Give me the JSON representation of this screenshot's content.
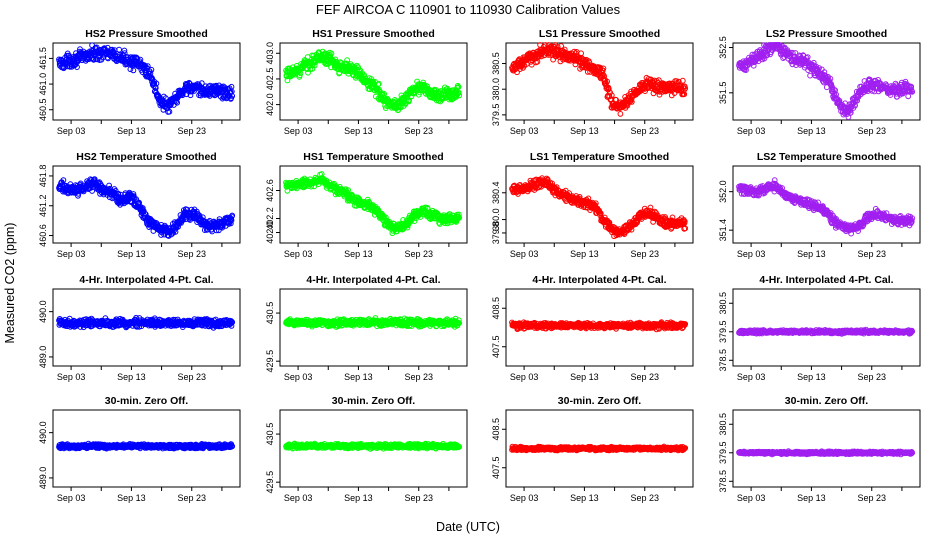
{
  "figure": {
    "title": "FEF   AIRCOA C   110901 to 110930   Calibration Values",
    "xlabel": "Date (UTC)",
    "ylabel": "Measured CO2 (ppm)"
  },
  "colors": {
    "blue": "#0000ff",
    "green": "#00ff00",
    "red": "#ff0000",
    "purple": "#a020f0"
  },
  "chart_data": [
    {
      "type": "scatter",
      "title": "HS2 Pressure Smoothed",
      "color": "blue",
      "ylim": [
        460.3,
        461.8
      ],
      "yticks": [
        {
          "v": 460.5,
          "label": "460.5"
        },
        {
          "v": 461.0,
          "label": "461.0"
        },
        {
          "v": 461.5,
          "label": "461.5"
        }
      ],
      "profile": [
        461.4,
        461.45,
        461.5,
        461.55,
        461.6,
        461.62,
        461.55,
        461.5,
        461.45,
        461.35,
        461.2,
        460.7,
        460.55,
        460.75,
        460.95,
        460.9,
        460.85,
        460.9,
        460.85,
        460.8
      ],
      "noise": 0.09
    },
    {
      "type": "scatter",
      "title": "HS1 Pressure Smoothed",
      "color": "green",
      "ylim": [
        401.7,
        403.2
      ],
      "yticks": [
        {
          "v": 402.0,
          "label": "402.0"
        },
        {
          "v": 402.5,
          "label": "402.5"
        },
        {
          "v": 403.0,
          "label": "403.0"
        }
      ],
      "profile": [
        402.55,
        402.65,
        402.75,
        402.85,
        402.95,
        402.85,
        402.75,
        402.7,
        402.6,
        402.45,
        402.3,
        402.05,
        401.95,
        402.1,
        402.3,
        402.35,
        402.2,
        402.15,
        402.2,
        402.25
      ],
      "noise": 0.09
    },
    {
      "type": "scatter",
      "title": "LS1 Pressure Smoothed",
      "color": "red",
      "ylim": [
        379.4,
        380.9
      ],
      "yticks": [
        {
          "v": 379.5,
          "label": "379.5"
        },
        {
          "v": 380.0,
          "label": "380.0"
        },
        {
          "v": 380.5,
          "label": "380.5"
        }
      ],
      "profile": [
        380.4,
        380.5,
        380.6,
        380.7,
        380.8,
        380.7,
        380.65,
        380.6,
        380.5,
        380.4,
        380.3,
        379.7,
        379.65,
        379.85,
        380.0,
        380.1,
        380.05,
        380.0,
        380.05,
        380.0
      ],
      "noise": 0.09
    },
    {
      "type": "scatter",
      "title": "LS2 Pressure Smoothed",
      "color": "purple",
      "ylim": [
        350.9,
        352.6
      ],
      "yticks": [
        {
          "v": 351.5,
          "label": "351.5"
        },
        {
          "v": 352.5,
          "label": "352.5"
        }
      ],
      "profile": [
        352.05,
        352.15,
        352.3,
        352.45,
        352.55,
        352.4,
        352.25,
        352.2,
        352.05,
        351.9,
        351.7,
        351.2,
        351.1,
        351.4,
        351.65,
        351.7,
        351.6,
        351.55,
        351.6,
        351.55
      ],
      "noise": 0.1
    },
    {
      "type": "scatter",
      "title": "HS2 Temperature Smoothed",
      "color": "blue",
      "ylim": [
        460.45,
        462.0
      ],
      "yticks": [
        {
          "v": 460.6,
          "label": "460.6"
        },
        {
          "v": 461.2,
          "label": "461.2"
        },
        {
          "v": 461.8,
          "label": "461.8"
        }
      ],
      "profile": [
        461.6,
        461.55,
        461.5,
        461.6,
        461.65,
        461.5,
        461.45,
        461.3,
        461.4,
        461.1,
        460.85,
        460.75,
        460.7,
        460.8,
        461.05,
        461.0,
        460.85,
        460.8,
        460.85,
        460.95
      ],
      "noise": 0.08
    },
    {
      "type": "scatter",
      "title": "HS1 Temperature Smoothed",
      "color": "green",
      "ylim": [
        401.85,
        402.95
      ],
      "yticks": [
        {
          "v": 402.0,
          "label": "402.0"
        },
        {
          "v": 402.2,
          "label": "402.2"
        },
        {
          "v": 402.6,
          "label": "402.6"
        }
      ],
      "profile": [
        402.65,
        402.68,
        402.7,
        402.72,
        402.75,
        402.65,
        402.6,
        402.5,
        402.45,
        402.4,
        402.3,
        402.15,
        402.05,
        402.1,
        402.25,
        402.3,
        402.25,
        402.2,
        402.2,
        402.2
      ],
      "noise": 0.05
    },
    {
      "type": "scatter",
      "title": "LS1 Temperature Smoothed",
      "color": "red",
      "ylim": [
        379.65,
        380.8
      ],
      "yticks": [
        {
          "v": 379.8,
          "label": "379.8"
        },
        {
          "v": 380.0,
          "label": "380.0"
        },
        {
          "v": 380.4,
          "label": "380.4"
        }
      ],
      "profile": [
        380.45,
        380.45,
        380.5,
        380.55,
        380.55,
        380.4,
        380.35,
        380.3,
        380.25,
        380.2,
        380.0,
        379.85,
        379.8,
        379.9,
        380.05,
        380.1,
        380.0,
        379.95,
        379.95,
        379.95
      ],
      "noise": 0.05
    },
    {
      "type": "scatter",
      "title": "LS2 Temperature Smoothed",
      "color": "purple",
      "ylim": [
        351.2,
        352.4
      ],
      "yticks": [
        {
          "v": 351.4,
          "label": "351.4"
        },
        {
          "v": 352.0,
          "label": "352.0"
        }
      ],
      "profile": [
        352.05,
        352.02,
        352.0,
        352.05,
        352.1,
        351.95,
        351.9,
        351.85,
        351.8,
        351.75,
        351.6,
        351.5,
        351.4,
        351.45,
        351.6,
        351.65,
        351.6,
        351.55,
        351.55,
        351.55
      ],
      "noise": 0.05
    },
    {
      "type": "scatter",
      "title": "4-Hr. Interpolated 4-Pt. Cal.",
      "color": "blue",
      "ylim": [
        488.8,
        490.5
      ],
      "yticks": [
        {
          "v": 489.0,
          "label": "489.0"
        },
        {
          "v": 490.0,
          "label": "490.0"
        }
      ],
      "profile": [
        489.75,
        489.75,
        489.75,
        489.75,
        489.75,
        489.75,
        489.75,
        489.75,
        489.75,
        489.75,
        489.75,
        489.75,
        489.75,
        489.75,
        489.75,
        489.75,
        489.75,
        489.75,
        489.75,
        489.75
      ],
      "noise": 0.06
    },
    {
      "type": "scatter",
      "title": "4-Hr. Interpolated 4-Pt. Cal.",
      "color": "green",
      "ylim": [
        429.4,
        431.0
      ],
      "yticks": [
        {
          "v": 429.5,
          "label": "429.5"
        },
        {
          "v": 430.5,
          "label": "430.5"
        }
      ],
      "profile": [
        430.3,
        430.3,
        430.3,
        430.3,
        430.3,
        430.3,
        430.3,
        430.3,
        430.3,
        430.3,
        430.3,
        430.3,
        430.3,
        430.3,
        430.3,
        430.3,
        430.3,
        430.3,
        430.3,
        430.3
      ],
      "noise": 0.05
    },
    {
      "type": "scatter",
      "title": "4-Hr. Interpolated 4-Pt. Cal.",
      "color": "red",
      "ylim": [
        407.0,
        409.0
      ],
      "yticks": [
        {
          "v": 407.5,
          "label": "407.5"
        },
        {
          "v": 408.5,
          "label": "408.5"
        }
      ],
      "profile": [
        408.05,
        408.05,
        408.05,
        408.05,
        408.05,
        408.05,
        408.05,
        408.05,
        408.05,
        408.05,
        408.05,
        408.05,
        408.05,
        408.05,
        408.05,
        408.05,
        408.05,
        408.05,
        408.05,
        408.05
      ],
      "noise": 0.05
    },
    {
      "type": "scatter",
      "title": "4-Hr. Interpolated 4-Pt. Cal.",
      "color": "purple",
      "ylim": [
        378.3,
        381.0
      ],
      "yticks": [
        {
          "v": 378.5,
          "label": "378.5"
        },
        {
          "v": 379.5,
          "label": "379.5"
        },
        {
          "v": 380.5,
          "label": "380.5"
        }
      ],
      "profile": [
        379.5,
        379.5,
        379.5,
        379.5,
        379.5,
        379.5,
        379.5,
        379.5,
        379.5,
        379.5,
        379.5,
        379.5,
        379.5,
        379.5,
        379.5,
        379.5,
        379.5,
        379.5,
        379.5,
        379.5
      ],
      "noise": 0.04
    },
    {
      "type": "scatter",
      "title": "30-min. Zero Off.",
      "color": "blue",
      "ylim": [
        488.8,
        490.5
      ],
      "yticks": [
        {
          "v": 489.0,
          "label": "489.0"
        },
        {
          "v": 490.0,
          "label": "490.0"
        }
      ],
      "profile": [
        489.7,
        489.7,
        489.7,
        489.7,
        489.7,
        489.7,
        489.7,
        489.7,
        489.7,
        489.7,
        489.7,
        489.7,
        489.7,
        489.7,
        489.7,
        489.7,
        489.7,
        489.7,
        489.7,
        489.7
      ],
      "noise": 0.03
    },
    {
      "type": "scatter",
      "title": "30-min. Zero Off.",
      "color": "green",
      "ylim": [
        429.4,
        431.0
      ],
      "yticks": [
        {
          "v": 429.5,
          "label": "429.5"
        },
        {
          "v": 430.5,
          "label": "430.5"
        }
      ],
      "profile": [
        430.25,
        430.25,
        430.25,
        430.25,
        430.25,
        430.25,
        430.25,
        430.25,
        430.25,
        430.25,
        430.25,
        430.25,
        430.25,
        430.25,
        430.25,
        430.25,
        430.25,
        430.25,
        430.25,
        430.25
      ],
      "noise": 0.03
    },
    {
      "type": "scatter",
      "title": "30-min. Zero Off.",
      "color": "red",
      "ylim": [
        407.0,
        409.0
      ],
      "yticks": [
        {
          "v": 407.5,
          "label": "407.5"
        },
        {
          "v": 408.5,
          "label": "408.5"
        }
      ],
      "profile": [
        408.0,
        408.0,
        408.0,
        408.0,
        408.0,
        408.0,
        408.0,
        408.0,
        408.0,
        408.0,
        408.0,
        408.0,
        408.0,
        408.0,
        408.0,
        408.0,
        408.0,
        408.0,
        408.0,
        408.0
      ],
      "noise": 0.03
    },
    {
      "type": "scatter",
      "title": "30-min. Zero Off.",
      "color": "purple",
      "ylim": [
        378.3,
        381.0
      ],
      "yticks": [
        {
          "v": 378.5,
          "label": "378.5"
        },
        {
          "v": 379.5,
          "label": "379.5"
        },
        {
          "v": 380.5,
          "label": "380.5"
        }
      ],
      "profile": [
        379.5,
        379.5,
        379.5,
        379.5,
        379.5,
        379.5,
        379.5,
        379.5,
        379.5,
        379.5,
        379.5,
        379.5,
        379.5,
        379.5,
        379.5,
        379.5,
        379.5,
        379.5,
        379.5,
        379.5
      ],
      "noise": 0.03
    }
  ],
  "x_axis": {
    "range_days": [
      0,
      31
    ],
    "ticks": [
      {
        "day": 3,
        "label": "Sep 03"
      },
      {
        "day": 13,
        "label": "Sep 13"
      },
      {
        "day": 23,
        "label": "Sep 23"
      }
    ],
    "minor_ticks": [
      8,
      18,
      28
    ]
  }
}
